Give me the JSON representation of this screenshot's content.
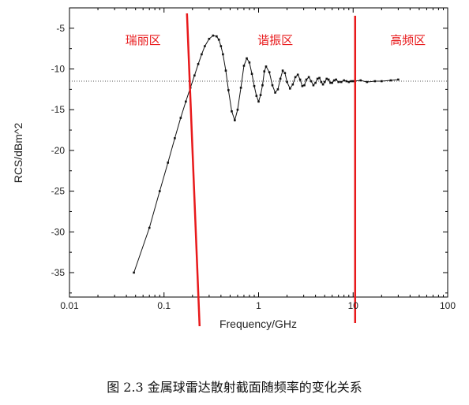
{
  "caption": "图 2.3 金属球雷达散射截面随频率的变化关系",
  "chart_data": {
    "type": "line",
    "xscale": "log",
    "xlabel": "Frequency/GHz",
    "ylabel": "RCS/dBm^2",
    "xlim": [
      0.01,
      100
    ],
    "ylim": [
      -38,
      -2.5
    ],
    "x_ticks": [
      0.01,
      0.1,
      1,
      10,
      100
    ],
    "x_tick_labels": [
      "0.01",
      "0.1",
      "1",
      "10",
      "100"
    ],
    "y_ticks": [
      -35,
      -30,
      -25,
      -20,
      -15,
      -10,
      -5
    ],
    "y_tick_labels": [
      "-35",
      "-30",
      "-25",
      "-20",
      "-15",
      "-10",
      "-5"
    ],
    "reference_line": {
      "y": -11.5,
      "style": "dotted"
    },
    "region_boundaries": [
      0.2,
      10.5
    ],
    "region_line_color": "#e8191b",
    "regions": [
      {
        "label": "瑞丽区",
        "x": 0.06
      },
      {
        "label": "谐振区",
        "x": 1.5
      },
      {
        "label": "高频区",
        "x": 38
      }
    ],
    "series": [
      {
        "marker": "square",
        "x": [
          0.048,
          0.07,
          0.09,
          0.11,
          0.13,
          0.15,
          0.17,
          0.19,
          0.21,
          0.23,
          0.25,
          0.27,
          0.3,
          0.33,
          0.36,
          0.38,
          0.4,
          0.42,
          0.45,
          0.48,
          0.52,
          0.56,
          0.6,
          0.65,
          0.7,
          0.75,
          0.8,
          0.85,
          0.9,
          0.95,
          1.0,
          1.05,
          1.1,
          1.15,
          1.2,
          1.3,
          1.4,
          1.5,
          1.6,
          1.7,
          1.8,
          1.9,
          2.0,
          2.15,
          2.3,
          2.45,
          2.6,
          2.75,
          2.9,
          3.05,
          3.2,
          3.4,
          3.6,
          3.8,
          4.0,
          4.2,
          4.4,
          4.6,
          4.8,
          5.0,
          5.25,
          5.5,
          5.75,
          6.0,
          6.3,
          6.6,
          7.0,
          7.5,
          8.0,
          8.5,
          9.0,
          9.5,
          10,
          12,
          14,
          17,
          20,
          25,
          30
        ],
        "y": [
          -35,
          -29.5,
          -25,
          -21.5,
          -18.5,
          -16,
          -14,
          -12.3,
          -10.8,
          -9.4,
          -8.2,
          -7.2,
          -6.3,
          -5.9,
          -6,
          -6.4,
          -7.2,
          -8.2,
          -10.2,
          -12.6,
          -15.2,
          -16.3,
          -15,
          -12.3,
          -9.6,
          -8.7,
          -9.2,
          -10.6,
          -12.1,
          -13.3,
          -14,
          -13.2,
          -12,
          -10.3,
          -9.7,
          -10.4,
          -12,
          -12.9,
          -12.5,
          -11.2,
          -10.2,
          -10.5,
          -11.6,
          -12.4,
          -11.9,
          -11,
          -10.7,
          -11.3,
          -12.1,
          -12,
          -11.3,
          -11,
          -11.5,
          -12,
          -11.7,
          -11.2,
          -11.1,
          -11.6,
          -11.9,
          -11.6,
          -11.2,
          -11.3,
          -11.7,
          -11.7,
          -11.4,
          -11.3,
          -11.6,
          -11.6,
          -11.4,
          -11.5,
          -11.6,
          -11.5,
          -11.5,
          -11.4,
          -11.6,
          -11.5,
          -11.5,
          -11.4,
          -11.3
        ]
      }
    ]
  }
}
